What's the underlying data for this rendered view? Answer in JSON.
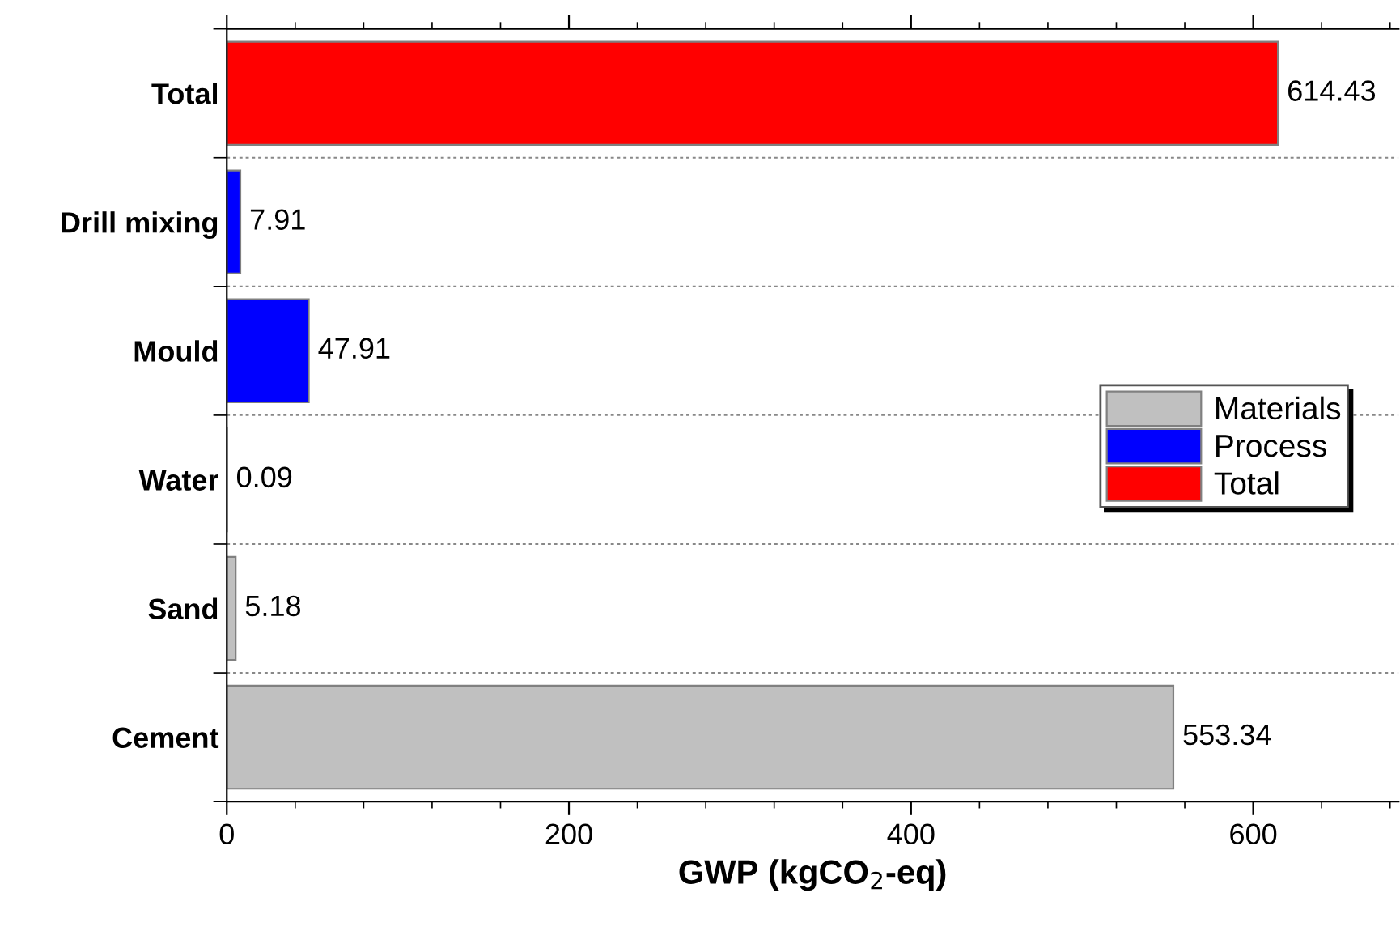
{
  "chart_data": {
    "type": "bar",
    "orientation": "horizontal",
    "xlabel": "GWP (kgCO$_{2}$-eq)",
    "categories": [
      "Total",
      "Drill mixing",
      "Mould",
      "Water",
      "Sand",
      "Cement"
    ],
    "series": [
      {
        "name": "Materials",
        "color": "#c0c0c0",
        "values": [
          null,
          null,
          null,
          0.09,
          5.18,
          553.34
        ]
      },
      {
        "name": "Process",
        "color": "#0000ff",
        "values": [
          null,
          7.91,
          47.91,
          null,
          null,
          null
        ]
      },
      {
        "name": "Total",
        "color": "#ff0000",
        "values": [
          614.43,
          null,
          null,
          null,
          null,
          null
        ]
      }
    ],
    "xlim": [
      0,
      685
    ],
    "xticks": [
      0,
      200,
      400,
      600
    ],
    "data_labels": true,
    "grid": "y",
    "legend": "right"
  }
}
